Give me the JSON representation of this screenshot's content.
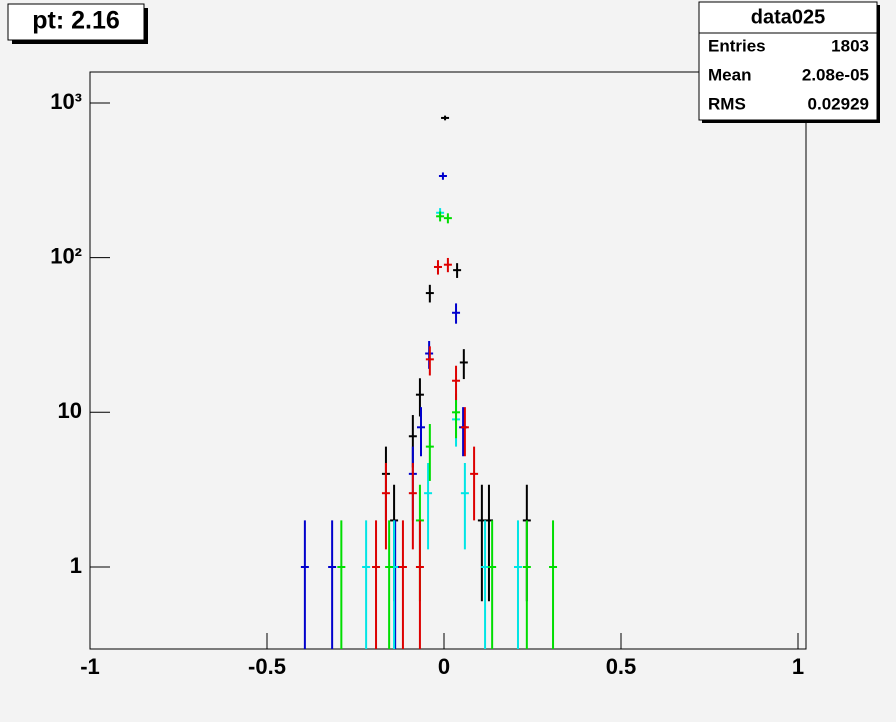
{
  "chart_data": {
    "type": "errorbar",
    "title": "pt: 2.16",
    "log_y": true,
    "xlim": [
      -1,
      1.0226
    ],
    "ylim": [
      0.295,
      1585
    ],
    "xticks": [
      -1,
      -0.5,
      0,
      0.5,
      1
    ],
    "yticks": [
      1,
      10,
      {
        "value": 100,
        "label": "10²"
      },
      {
        "value": 1000,
        "label": "10³"
      }
    ],
    "series": [
      {
        "color": "#000000",
        "x": [
          0.003,
          -0.04,
          0.037,
          0.056,
          -0.068,
          -0.088,
          -0.164,
          -0.141,
          0.107,
          0.127,
          0.234
        ],
        "values": [
          800,
          59,
          83,
          21,
          13,
          7,
          4,
          2,
          2,
          2,
          2
        ],
        "errors": [
          28,
          7.7,
          9.1,
          4.6,
          3.6,
          2.6,
          2,
          1.4,
          1.4,
          1.4,
          1.4
        ]
      },
      {
        "color": "#0000cc",
        "x": [
          -0.003,
          0.034,
          -0.042,
          -0.065,
          -0.088,
          -0.393,
          -0.316,
          -0.138,
          0.054
        ],
        "values": [
          337,
          44,
          24,
          8,
          4,
          1,
          1,
          1,
          8
        ],
        "errors": [
          18.4,
          6.6,
          4.9,
          2.8,
          2,
          1,
          1,
          1,
          2.8
        ]
      },
      {
        "color": "#00e5e5",
        "x": [
          -0.011,
          0.034,
          -0.045,
          0.059,
          -0.22,
          -0.141,
          0.116,
          0.209
        ],
        "values": [
          195,
          9,
          3,
          3,
          1,
          1,
          1,
          1
        ],
        "errors": [
          14,
          3,
          1.7,
          1.7,
          1,
          1,
          1,
          1
        ]
      },
      {
        "color": "#00dd00",
        "x": [
          -0.011,
          0.011,
          0.034,
          -0.04,
          -0.068,
          -0.29,
          -0.155,
          0.136,
          0.234,
          0.308
        ],
        "values": [
          185,
          180,
          10,
          6,
          2,
          1,
          1,
          1,
          1,
          1
        ],
        "errors": [
          13.6,
          13.4,
          3.2,
          2.4,
          1.4,
          1,
          1,
          1,
          1,
          1
        ]
      },
      {
        "color": "#dd0000",
        "x": [
          -0.017,
          0.011,
          -0.04,
          0.034,
          0.059,
          0.085,
          -0.164,
          -0.088,
          -0.192,
          -0.116,
          -0.068
        ],
        "values": [
          87,
          90,
          22,
          16,
          8,
          4,
          3,
          3,
          1,
          1,
          1
        ],
        "errors": [
          9.3,
          9.5,
          4.7,
          4,
          2.8,
          2,
          1.7,
          1.7,
          1,
          1,
          1
        ]
      }
    ],
    "stats": {
      "title": "data025",
      "rows": [
        [
          "Entries",
          "1803"
        ],
        [
          "Mean",
          "2.08e-05"
        ],
        [
          "RMS",
          "0.02929"
        ]
      ]
    }
  }
}
